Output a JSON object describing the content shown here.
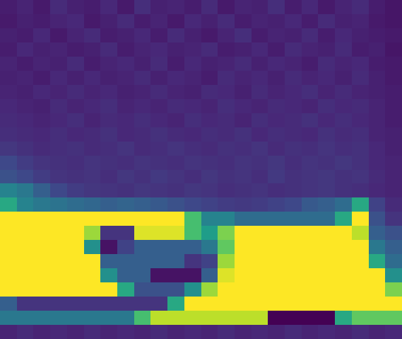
{
  "chart_data": {
    "type": "heatmap",
    "tick_labels": false,
    "cells": [
      [
        0.08,
        0.1,
        0.07,
        0.12,
        0.09,
        0.08,
        0.11,
        0.07,
        0.13,
        0.09,
        0.1,
        0.08,
        0.12,
        0.07,
        0.1,
        0.09,
        0.13,
        0.08,
        0.11,
        0.07,
        0.1,
        0.12,
        0.08,
        0.06
      ],
      [
        0.07,
        0.09,
        0.08,
        0.1,
        0.11,
        0.07,
        0.09,
        0.12,
        0.08,
        0.1,
        0.07,
        0.11,
        0.09,
        0.12,
        0.08,
        0.1,
        0.09,
        0.11,
        0.08,
        0.12,
        0.09,
        0.1,
        0.07,
        0.06
      ],
      [
        0.09,
        0.08,
        0.11,
        0.07,
        0.1,
        0.12,
        0.08,
        0.09,
        0.11,
        0.08,
        0.12,
        0.09,
        0.07,
        0.1,
        0.13,
        0.08,
        0.1,
        0.09,
        0.12,
        0.08,
        0.11,
        0.09,
        0.08,
        0.07
      ],
      [
        0.08,
        0.11,
        0.09,
        0.1,
        0.08,
        0.09,
        0.12,
        0.08,
        0.1,
        0.11,
        0.09,
        0.1,
        0.12,
        0.08,
        0.09,
        0.11,
        0.08,
        0.12,
        0.1,
        0.09,
        0.12,
        0.08,
        0.09,
        0.06
      ],
      [
        0.1,
        0.08,
        0.1,
        0.09,
        0.12,
        0.08,
        0.1,
        0.11,
        0.09,
        0.12,
        0.08,
        0.11,
        0.09,
        0.1,
        0.12,
        0.09,
        0.11,
        0.1,
        0.08,
        0.12,
        0.1,
        0.11,
        0.08,
        0.07
      ],
      [
        0.09,
        0.1,
        0.08,
        0.11,
        0.09,
        0.11,
        0.09,
        0.1,
        0.12,
        0.09,
        0.11,
        0.1,
        0.08,
        0.12,
        0.1,
        0.11,
        0.09,
        0.12,
        0.1,
        0.11,
        0.09,
        0.12,
        0.09,
        0.07
      ],
      [
        0.1,
        0.09,
        0.11,
        0.1,
        0.12,
        0.1,
        0.11,
        0.09,
        0.1,
        0.12,
        0.1,
        0.09,
        0.12,
        0.11,
        0.09,
        0.12,
        0.1,
        0.11,
        0.13,
        0.1,
        0.12,
        0.1,
        0.09,
        0.08
      ],
      [
        0.11,
        0.1,
        0.09,
        0.12,
        0.1,
        0.11,
        0.13,
        0.1,
        0.11,
        0.1,
        0.12,
        0.11,
        0.1,
        0.13,
        0.11,
        0.1,
        0.12,
        0.11,
        0.1,
        0.13,
        0.11,
        0.12,
        0.1,
        0.08
      ],
      [
        0.12,
        0.11,
        0.1,
        0.11,
        0.13,
        0.1,
        0.12,
        0.11,
        0.13,
        0.11,
        0.1,
        0.13,
        0.11,
        0.12,
        0.1,
        0.13,
        0.11,
        0.12,
        0.14,
        0.11,
        0.13,
        0.11,
        0.1,
        0.08
      ],
      [
        0.13,
        0.12,
        0.11,
        0.13,
        0.11,
        0.12,
        0.14,
        0.11,
        0.12,
        0.14,
        0.12,
        0.11,
        0.13,
        0.12,
        0.14,
        0.11,
        0.13,
        0.12,
        0.11,
        0.14,
        0.12,
        0.13,
        0.1,
        0.09
      ],
      [
        0.16,
        0.14,
        0.12,
        0.13,
        0.14,
        0.12,
        0.13,
        0.15,
        0.12,
        0.13,
        0.15,
        0.13,
        0.12,
        0.14,
        0.13,
        0.15,
        0.12,
        0.14,
        0.13,
        0.15,
        0.13,
        0.14,
        0.11,
        0.09
      ],
      [
        0.22,
        0.18,
        0.15,
        0.14,
        0.13,
        0.15,
        0.14,
        0.13,
        0.15,
        0.14,
        0.13,
        0.15,
        0.14,
        0.13,
        0.15,
        0.14,
        0.16,
        0.13,
        0.15,
        0.14,
        0.16,
        0.14,
        0.11,
        0.1
      ],
      [
        0.25,
        0.22,
        0.18,
        0.15,
        0.14,
        0.15,
        0.13,
        0.16,
        0.14,
        0.17,
        0.15,
        0.13,
        0.16,
        0.14,
        0.15,
        0.13,
        0.17,
        0.14,
        0.15,
        0.16,
        0.14,
        0.15,
        0.12,
        0.1
      ],
      [
        0.45,
        0.4,
        0.3,
        0.22,
        0.18,
        0.16,
        0.15,
        0.14,
        0.16,
        0.15,
        0.14,
        0.16,
        0.15,
        0.13,
        0.14,
        0.15,
        0.13,
        0.14,
        0.15,
        0.16,
        0.14,
        0.13,
        0.11,
        0.1
      ],
      [
        0.6,
        0.45,
        0.4,
        0.38,
        0.35,
        0.33,
        0.3,
        0.32,
        0.3,
        0.28,
        0.25,
        0.22,
        0.2,
        0.18,
        0.17,
        0.18,
        0.2,
        0.22,
        0.28,
        0.3,
        0.35,
        0.6,
        0.2,
        0.12
      ],
      [
        1,
        1,
        1,
        1,
        1,
        1,
        1,
        1,
        1,
        1,
        1,
        0.7,
        0.45,
        0.45,
        0.35,
        0.35,
        0.35,
        0.35,
        0.35,
        0.35,
        0.6,
        1,
        0.25,
        0.15
      ],
      [
        1,
        1,
        1,
        1,
        1,
        0.85,
        0.15,
        0.15,
        0.95,
        0.95,
        0.95,
        0.7,
        0.55,
        0.8,
        1,
        1,
        1,
        1,
        1,
        1,
        1,
        0.9,
        0.3,
        0.25
      ],
      [
        1,
        1,
        1,
        1,
        1,
        0.5,
        0.05,
        0.2,
        0.3,
        0.3,
        0.3,
        0.3,
        0.4,
        0.75,
        1,
        1,
        1,
        1,
        1,
        1,
        1,
        1,
        0.4,
        0.3
      ],
      [
        1,
        1,
        1,
        1,
        1,
        1,
        0.3,
        0.3,
        0.3,
        0.3,
        0.3,
        0.15,
        0.2,
        0.85,
        1,
        1,
        1,
        1,
        1,
        1,
        1,
        1,
        0.6,
        0.35
      ],
      [
        1,
        1,
        1,
        1,
        1,
        1,
        0.5,
        0.3,
        0.3,
        0.05,
        0.05,
        0.05,
        0.3,
        0.95,
        1,
        1,
        1,
        1,
        1,
        1,
        1,
        1,
        1,
        0.5
      ],
      [
        1,
        1,
        1,
        1,
        1,
        1,
        1,
        0.6,
        0.25,
        0.25,
        0.25,
        0.5,
        0.85,
        1,
        1,
        1,
        1,
        1,
        1,
        1,
        1,
        1,
        1,
        0.8
      ],
      [
        0.3,
        0.15,
        0.15,
        0.15,
        0.15,
        0.15,
        0.15,
        0.15,
        0.15,
        0.15,
        0.6,
        1,
        1,
        1,
        1,
        1,
        1,
        1,
        1,
        1,
        1,
        1,
        1,
        1
      ],
      [
        0.4,
        0.4,
        0.4,
        0.4,
        0.4,
        0.4,
        0.4,
        0.4,
        0.7,
        0.9,
        0.9,
        0.9,
        0.9,
        0.9,
        0.9,
        0.9,
        0,
        0,
        0,
        0,
        0.6,
        0.75,
        0.75,
        0.75
      ],
      [
        0.1,
        0.12,
        0.1,
        0.11,
        0.1,
        0.12,
        0.1,
        0.11,
        0.1,
        0.12,
        0.1,
        0.11,
        0.1,
        0.12,
        0.1,
        0.11,
        0.1,
        0.12,
        0.1,
        0.11,
        0.1,
        0.12,
        0.1,
        0.11
      ]
    ]
  }
}
